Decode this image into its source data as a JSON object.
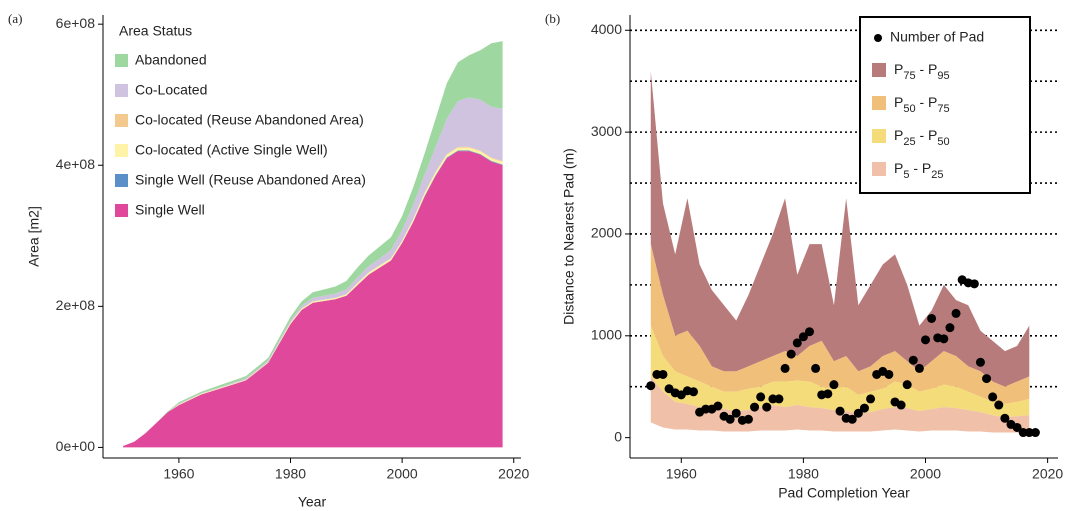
{
  "panel_labels": [
    "(a)",
    "(b)"
  ],
  "chart_data": [
    {
      "type": "area",
      "xlabel": "Year",
      "ylabel": "Area [m2]",
      "legend_title": "Area Status",
      "legend": "top-left",
      "xlim": [
        1946.4,
        2021.3
      ],
      "xticks": [
        1960,
        1980,
        2000,
        2020
      ],
      "ylim": [
        -15000000.0,
        613000000.0
      ],
      "yticks": [
        {
          "value": 0,
          "label": "0e+00"
        },
        {
          "value": 200000000.0,
          "label": "2e+08"
        },
        {
          "value": 400000000.0,
          "label": "4e+08"
        },
        {
          "value": 600000000.0,
          "label": "6e+08"
        }
      ],
      "x": [
        1950,
        1952,
        1954,
        1956,
        1958,
        1960,
        1964,
        1968,
        1972,
        1976,
        1980,
        1982,
        1984,
        1988,
        1990,
        1992,
        1994,
        1996,
        1998,
        2000,
        2002,
        2004,
        2006,
        2008,
        2010,
        2012,
        2014,
        2016,
        2018
      ],
      "series": [
        {
          "name": "Single Well",
          "color": "#e0489c",
          "values": [
            2000000.0,
            8000000.0,
            20000000.0,
            35000000.0,
            50000000.0,
            60000000.0,
            75000000.0,
            85000000.0,
            95000000.0,
            120000000.0,
            175000000.0,
            195000000.0,
            205000000.0,
            210000000.0,
            215000000.0,
            230000000.0,
            245000000.0,
            255000000.0,
            265000000.0,
            290000000.0,
            320000000.0,
            355000000.0,
            385000000.0,
            410000000.0,
            420000000.0,
            420000000.0,
            415000000.0,
            405000000.0,
            400000000.0
          ]
        },
        {
          "name": "Single Well (Reuse Abandoned Area)",
          "color": "#5b8fc7",
          "values": [
            0,
            0,
            0,
            0,
            0,
            0,
            0,
            0,
            0,
            0,
            0,
            0,
            0,
            0,
            0,
            0,
            0,
            0,
            0,
            0,
            0,
            1000000.0,
            1000000.0,
            1000000.0,
            1000000.0,
            1000000.0,
            1000000.0,
            1000000.0,
            1000000.0
          ]
        },
        {
          "name": "Co-located (Active Single  Well)",
          "color": "#fff3a8",
          "values": [
            0,
            0,
            0,
            0,
            0,
            1000000.0,
            1000000.0,
            1000000.0,
            1000000.0,
            1000000.0,
            2000000.0,
            2000000.0,
            2000000.0,
            2000000.0,
            2000000.0,
            3000000.0,
            3000000.0,
            3000000.0,
            3000000.0,
            3000000.0,
            4000000.0,
            4000000.0,
            4000000.0,
            4000000.0,
            4000000.0,
            4000000.0,
            4000000.0,
            4000000.0,
            4000000.0
          ]
        },
        {
          "name": "Co-located (Reuse Abandoned Area)",
          "color": "#f3c98e",
          "values": [
            0,
            0,
            0,
            0,
            0,
            0,
            0,
            0,
            0,
            0,
            0,
            0,
            0,
            0,
            0,
            0,
            0,
            0,
            0,
            0,
            0,
            1000000.0,
            1000000.0,
            1000000.0,
            1000000.0,
            1000000.0,
            1000000.0,
            1000000.0,
            1000000.0
          ]
        },
        {
          "name": "Co-Located",
          "color": "#cfc3e0",
          "values": [
            0,
            0,
            0,
            0,
            0,
            1000000.0,
            1000000.0,
            1000000.0,
            2000000.0,
            2000000.0,
            3000000.0,
            4000000.0,
            5000000.0,
            6000000.0,
            7000000.0,
            8000000.0,
            9000000.0,
            10000000.0,
            12000000.0,
            15000000.0,
            20000000.0,
            25000000.0,
            35000000.0,
            50000000.0,
            65000000.0,
            70000000.0,
            72000000.0,
            72000000.0,
            74000000.0
          ]
        },
        {
          "name": "Abandoned",
          "color": "#9ed8a0",
          "values": [
            0,
            0,
            0,
            0,
            1000000.0,
            2000000.0,
            2000000.0,
            3000000.0,
            3000000.0,
            4000000.0,
            5000000.0,
            6000000.0,
            8000000.0,
            10000000.0,
            12000000.0,
            14000000.0,
            15000000.0,
            17000000.0,
            18000000.0,
            20000000.0,
            25000000.0,
            30000000.0,
            40000000.0,
            50000000.0,
            55000000.0,
            60000000.0,
            70000000.0,
            90000000.0,
            96000000.0
          ]
        }
      ]
    },
    {
      "type": "scatter",
      "xlabel": "Pad Completion Year",
      "ylabel": "Distance to Nearest Pad (m)",
      "legend": "top-right",
      "xlim": [
        1951.6,
        2021.7
      ],
      "xticks": [
        1960,
        1980,
        2000,
        2020
      ],
      "ylim": [
        -200,
        4150
      ],
      "yticks": [
        0,
        1000,
        2000,
        3000,
        4000
      ],
      "grid": [
        500,
        1000,
        1500,
        2000,
        2500,
        3000,
        3500,
        4000
      ],
      "points": {
        "name": "Number of Pad",
        "color": "#000000",
        "x": [
          1955,
          1956,
          1957,
          1958,
          1959,
          1960,
          1961,
          1962,
          1963,
          1964,
          1965,
          1966,
          1967,
          1968,
          1969,
          1970,
          1971,
          1972,
          1973,
          1974,
          1975,
          1976,
          1977,
          1978,
          1979,
          1980,
          1981,
          1982,
          1983,
          1984,
          1985,
          1986,
          1987,
          1988,
          1989,
          1990,
          1991,
          1992,
          1993,
          1994,
          1995,
          1996,
          1997,
          1998,
          1999,
          2000,
          2001,
          2002,
          2003,
          2004,
          2005,
          2006,
          2007,
          2008,
          2009,
          2010,
          2011,
          2012,
          2013,
          2014,
          2015,
          2016,
          2017,
          2018
        ],
        "values": [
          510,
          620,
          620,
          480,
          440,
          420,
          460,
          450,
          250,
          280,
          280,
          310,
          210,
          180,
          240,
          170,
          180,
          300,
          400,
          300,
          380,
          380,
          680,
          820,
          930,
          990,
          1040,
          680,
          420,
          430,
          520,
          260,
          190,
          180,
          240,
          290,
          380,
          620,
          650,
          620,
          350,
          320,
          520,
          760,
          680,
          960,
          1170,
          980,
          970,
          1080,
          1220,
          1550,
          1520,
          1510,
          740,
          580,
          400,
          320,
          190,
          130,
          100,
          50,
          50,
          50
        ]
      },
      "band_x": [
        1955,
        1957,
        1959,
        1961,
        1963,
        1965,
        1967,
        1969,
        1971,
        1973,
        1975,
        1977,
        1979,
        1981,
        1983,
        1985,
        1987,
        1989,
        1991,
        1993,
        1995,
        1997,
        1999,
        2001,
        2003,
        2005,
        2007,
        2009,
        2011,
        2013,
        2015,
        2017
      ],
      "bands": [
        {
          "name": "P75 - P95",
          "color": "#b87b7b",
          "lower": [
            1900,
            1400,
            1000,
            1050,
            900,
            700,
            650,
            650,
            700,
            750,
            800,
            850,
            800,
            900,
            950,
            750,
            800,
            650,
            700,
            800,
            850,
            750,
            650,
            750,
            850,
            800,
            700,
            650,
            550,
            500,
            550,
            600
          ],
          "upper": [
            3600,
            2300,
            1800,
            2350,
            1700,
            1450,
            1300,
            1150,
            1400,
            1700,
            2000,
            2350,
            1600,
            1900,
            1900,
            1300,
            2350,
            1300,
            1500,
            1700,
            1800,
            1500,
            1100,
            1250,
            1500,
            1350,
            1300,
            1050,
            950,
            850,
            900,
            1100
          ]
        },
        {
          "name": "P50 - P75",
          "color": "#f0c07a",
          "lower": [
            1100,
            800,
            650,
            600,
            550,
            500,
            450,
            450,
            480,
            500,
            550,
            550,
            560,
            550,
            500,
            480,
            500,
            420,
            450,
            480,
            550,
            520,
            450,
            480,
            520,
            500,
            450,
            400,
            350,
            330,
            350,
            380
          ],
          "upper": [
            1900,
            1400,
            1000,
            1050,
            900,
            700,
            650,
            650,
            700,
            750,
            800,
            850,
            800,
            900,
            950,
            750,
            800,
            650,
            700,
            800,
            850,
            750,
            650,
            750,
            850,
            800,
            700,
            650,
            550,
            500,
            550,
            600
          ]
        },
        {
          "name": "P25 - P50",
          "color": "#f5dc7a",
          "lower": [
            600,
            450,
            350,
            330,
            300,
            300,
            280,
            260,
            270,
            300,
            320,
            300,
            320,
            300,
            290,
            270,
            260,
            240,
            250,
            280,
            300,
            290,
            260,
            280,
            300,
            290,
            270,
            250,
            220,
            200,
            210,
            220
          ],
          "upper": [
            1100,
            800,
            650,
            600,
            550,
            500,
            450,
            450,
            480,
            500,
            550,
            550,
            560,
            550,
            500,
            480,
            500,
            420,
            450,
            480,
            550,
            520,
            450,
            480,
            520,
            500,
            450,
            400,
            350,
            330,
            350,
            380
          ]
        },
        {
          "name": "P5 - P25",
          "color": "#f0c0a8",
          "lower": [
            150,
            100,
            80,
            80,
            70,
            70,
            60,
            60,
            60,
            70,
            70,
            70,
            80,
            70,
            70,
            60,
            60,
            60,
            60,
            70,
            80,
            70,
            60,
            70,
            70,
            70,
            60,
            60,
            50,
            50,
            50,
            50
          ],
          "upper": [
            600,
            450,
            350,
            330,
            300,
            300,
            280,
            260,
            270,
            300,
            320,
            300,
            320,
            300,
            290,
            270,
            260,
            240,
            250,
            280,
            300,
            290,
            260,
            280,
            300,
            290,
            270,
            250,
            220,
            200,
            210,
            220
          ]
        }
      ]
    }
  ]
}
